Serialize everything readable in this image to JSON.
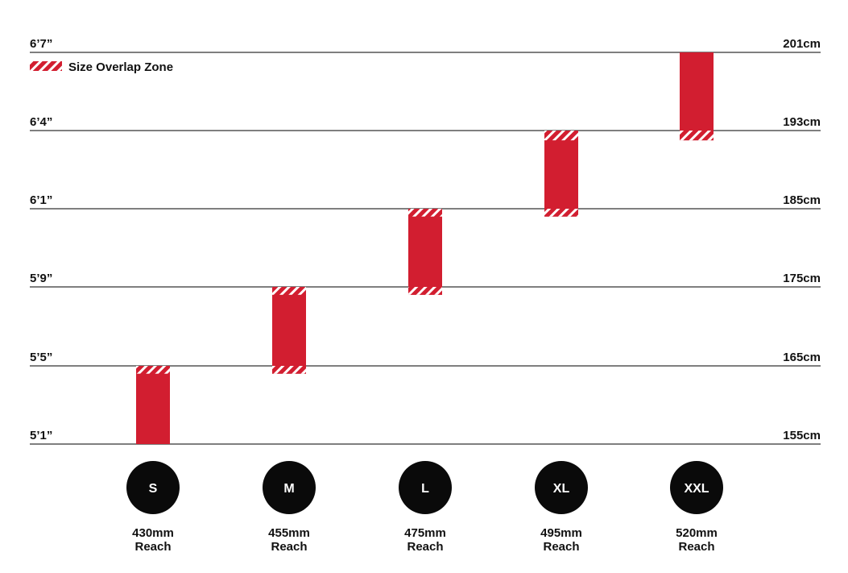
{
  "chart_data": {
    "type": "bar",
    "subtype": "floating-range",
    "legend": {
      "label": "Size Overlap Zone",
      "placement": "top-left"
    },
    "y_axis_left": {
      "unit": "feet-inches",
      "ticks": [
        "5’1”",
        "5’5”",
        "5’9”",
        "6’1”",
        "6’4”",
        "6’7”"
      ]
    },
    "y_axis_right": {
      "unit": "cm",
      "ticks": [
        155,
        165,
        175,
        185,
        193,
        201
      ],
      "tick_labels": [
        "155cm",
        "165cm",
        "175cm",
        "185cm",
        "193cm",
        "201cm"
      ],
      "ylim": [
        155,
        201
      ]
    },
    "grid": true,
    "categories": [
      "S",
      "M",
      "L",
      "XL",
      "XXL"
    ],
    "reach_labels": [
      "430mm",
      "455mm",
      "475mm",
      "495mm",
      "520mm"
    ],
    "reach_suffix": "Reach",
    "ranges_cm": [
      {
        "size": "S",
        "min": 155,
        "max": 165,
        "overlap_low": null,
        "overlap_high": [
          164,
          165
        ]
      },
      {
        "size": "M",
        "min": 164,
        "max": 175,
        "overlap_low": [
          164,
          165
        ],
        "overlap_high": [
          174,
          175
        ]
      },
      {
        "size": "L",
        "min": 174,
        "max": 185,
        "overlap_low": [
          174,
          175
        ],
        "overlap_high": [
          184,
          185
        ]
      },
      {
        "size": "XL",
        "min": 184,
        "max": 193,
        "overlap_low": [
          184,
          185
        ],
        "overlap_high": [
          192,
          193
        ]
      },
      {
        "size": "XXL",
        "min": 192,
        "max": 201,
        "overlap_low": [
          192,
          193
        ],
        "overlap_high": null
      }
    ],
    "colors": {
      "bar": "#d21e30",
      "overlap_stripe": "#ffffff",
      "badge": "#0a0a0a",
      "badge_text": "#ffffff",
      "gridline": "#333333",
      "text": "#111111"
    }
  }
}
